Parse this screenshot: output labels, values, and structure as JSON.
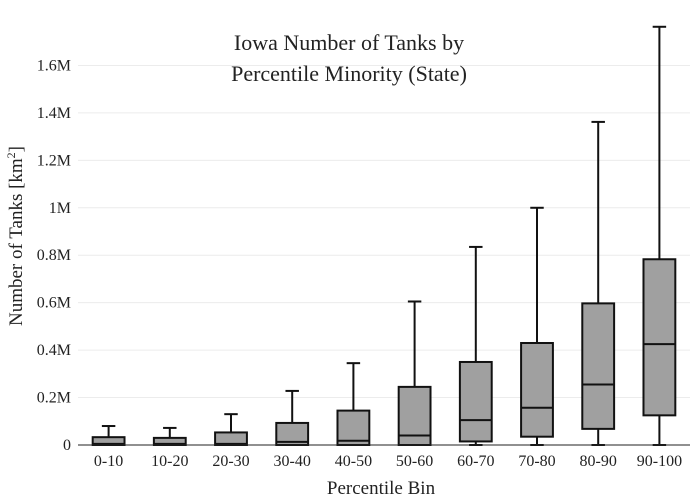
{
  "chart_data": {
    "type": "box",
    "title_lines": [
      "Iowa Number of Tanks by",
      "Percentile Minority (State)"
    ],
    "xlabel": "Percentile Bin",
    "ylabel": "Number of Tanks  [km",
    "ylabel_sup": "2",
    "ylabel_close": "]",
    "ylim": [
      0,
      1800000
    ],
    "yticks": [
      {
        "value": 0,
        "label": "0"
      },
      {
        "value": 200000,
        "label": "0.2M"
      },
      {
        "value": 400000,
        "label": "0.4M"
      },
      {
        "value": 600000,
        "label": "0.6M"
      },
      {
        "value": 800000,
        "label": "0.8M"
      },
      {
        "value": 1000000,
        "label": "1M"
      },
      {
        "value": 1200000,
        "label": "1.2M"
      },
      {
        "value": 1400000,
        "label": "1.4M"
      },
      {
        "value": 1600000,
        "label": "1.6M"
      }
    ],
    "grid": true,
    "box_color": "#a0a0a0",
    "categories": [
      "0-10",
      "10-20",
      "20-30",
      "30-40",
      "40-50",
      "50-60",
      "60-70",
      "70-80",
      "80-90",
      "90-100"
    ],
    "boxes": [
      {
        "min": 0,
        "q1": 0,
        "median": 5000,
        "q3": 33000,
        "max": 80000
      },
      {
        "min": 0,
        "q1": 0,
        "median": 5000,
        "q3": 30000,
        "max": 72000
      },
      {
        "min": 0,
        "q1": 0,
        "median": 5000,
        "q3": 53000,
        "max": 130000
      },
      {
        "min": 0,
        "q1": 0,
        "median": 13000,
        "q3": 93000,
        "max": 228000
      },
      {
        "min": 0,
        "q1": 0,
        "median": 18000,
        "q3": 145000,
        "max": 345000
      },
      {
        "min": 0,
        "q1": 0,
        "median": 40000,
        "q3": 245000,
        "max": 605000
      },
      {
        "min": 0,
        "q1": 15000,
        "median": 105000,
        "q3": 350000,
        "max": 835000
      },
      {
        "min": 0,
        "q1": 35000,
        "median": 157000,
        "q3": 430000,
        "max": 1000000
      },
      {
        "min": 0,
        "q1": 68000,
        "median": 255000,
        "q3": 597000,
        "max": 1362000
      },
      {
        "min": 0,
        "q1": 125000,
        "median": 425000,
        "q3": 783000,
        "max": 1763000
      }
    ]
  }
}
